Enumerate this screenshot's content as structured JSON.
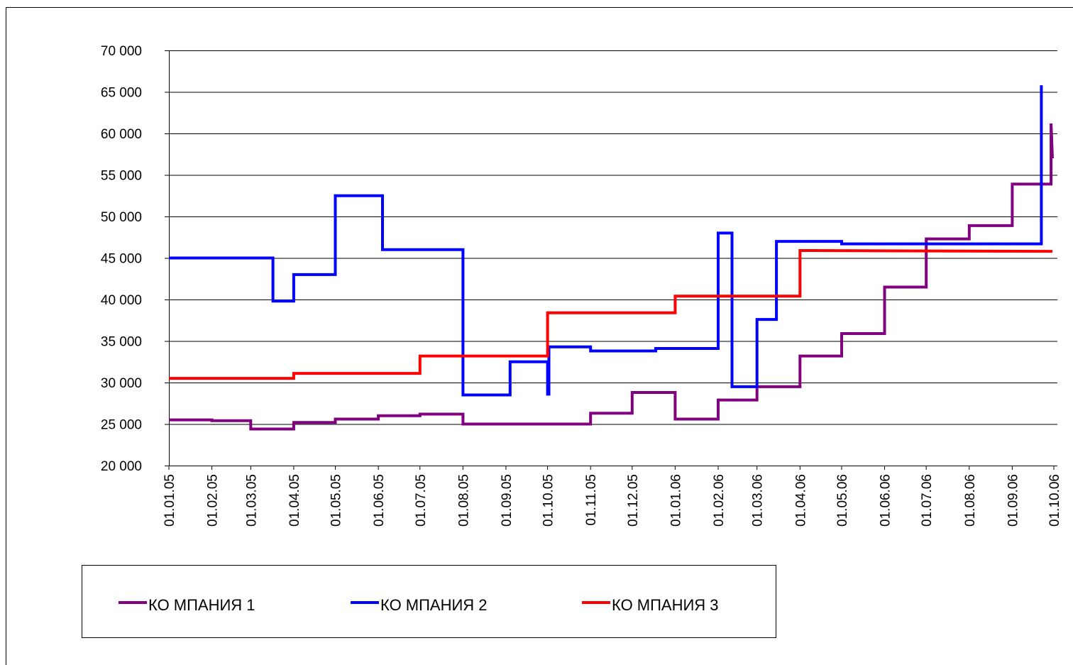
{
  "chart_data": {
    "type": "line",
    "xlim": [
      "01.01.05",
      "01.10.06"
    ],
    "xticks": [
      "01.01.05",
      "01.02.05",
      "01.03.05",
      "01.04.05",
      "01.05.05",
      "01.06.05",
      "01.07.05",
      "01.08.05",
      "01.09.05",
      "01.10.05",
      "01.11.05",
      "01.12.05",
      "01.01.06",
      "01.02.06",
      "01.03.06",
      "01.04.06",
      "01.05.06",
      "01.06.06",
      "01.07.06",
      "01.08.06",
      "01.09.06",
      "01.10.06"
    ],
    "ylim": [
      20000,
      70000
    ],
    "yticks": [
      {
        "value": 20000,
        "label": "20 000"
      },
      {
        "value": 25000,
        "label": "25 000"
      },
      {
        "value": 30000,
        "label": "30 000"
      },
      {
        "value": 35000,
        "label": "35 000"
      },
      {
        "value": 40000,
        "label": "40 000"
      },
      {
        "value": 45000,
        "label": "45 000"
      },
      {
        "value": 50000,
        "label": "50 000"
      },
      {
        "value": 55000,
        "label": "55 000"
      },
      {
        "value": 60000,
        "label": "60 000"
      },
      {
        "value": 65000,
        "label": "65 000"
      },
      {
        "value": 70000,
        "label": "70 000"
      }
    ],
    "grid": true,
    "series": [
      {
        "name": "КО МПАНИЯ 1",
        "color": "#800080",
        "x": [
          "01.01.05",
          "01.02.05",
          "01.02.05",
          "01.03.05",
          "01.03.05",
          "01.04.05",
          "01.04.05",
          "01.05.05",
          "01.05.05",
          "01.06.05",
          "01.06.05",
          "01.07.05",
          "01.07.05",
          "01.08.05",
          "01.08.05",
          "01.11.05",
          "01.11.05",
          "01.12.05",
          "01.12.05",
          "01.01.06",
          "01.01.06",
          "01.02.06",
          "01.02.06",
          "01.03.06",
          "01.03.06",
          "01.04.06",
          "01.04.06",
          "01.05.06",
          "01.05.06",
          "01.06.06",
          "01.06.06",
          "01.07.06",
          "01.07.06",
          "01.08.06",
          "01.08.06",
          "01.09.06",
          "01.09.06",
          "29.09.06",
          "29.09.06",
          "30.09.06"
        ],
        "values": [
          25500,
          25500,
          25400,
          25400,
          24400,
          24400,
          25200,
          25200,
          25600,
          25600,
          26000,
          26000,
          26200,
          26200,
          25000,
          25000,
          26300,
          26300,
          28800,
          28800,
          25600,
          25600,
          27900,
          27900,
          29500,
          29500,
          33200,
          33200,
          35900,
          35900,
          41500,
          41500,
          47300,
          47300,
          48900,
          48900,
          53900,
          53900,
          61200,
          57000
        ]
      },
      {
        "name": "КО МПАНИЯ 2",
        "color": "#0000ff",
        "x": [
          "01.01.05",
          "17.03.05",
          "17.03.05",
          "01.04.05",
          "01.04.05",
          "01.05.05",
          "01.05.05",
          "04.06.05",
          "04.06.05",
          "01.08.05",
          "01.08.05",
          "04.09.05",
          "04.09.05",
          "01.10.05",
          "01.10.05",
          "02.10.05",
          "02.10.05",
          "01.11.05",
          "01.11.05",
          "18.12.05",
          "18.12.05",
          "01.02.06",
          "01.02.06",
          "11.02.06",
          "11.02.06",
          "01.03.06",
          "01.03.06",
          "15.03.06",
          "15.03.06",
          "01.05.06",
          "01.05.06",
          "22.09.06",
          "22.09.06"
        ],
        "values": [
          45000,
          45000,
          39800,
          39800,
          43000,
          43000,
          52500,
          52500,
          46000,
          46000,
          28500,
          28500,
          32500,
          32500,
          28600,
          28600,
          34300,
          34300,
          33800,
          33800,
          34100,
          34100,
          48000,
          48000,
          29500,
          29500,
          37600,
          37600,
          47000,
          47000,
          46700,
          46700,
          65800
        ]
      },
      {
        "name": "КО МПАНИЯ 3",
        "color": "#ff0000",
        "x": [
          "01.01.05",
          "01.04.05",
          "01.04.05",
          "01.07.05",
          "01.07.05",
          "01.10.05",
          "01.10.05",
          "01.01.06",
          "01.01.06",
          "01.04.06",
          "01.04.06",
          "30.09.06"
        ],
        "values": [
          30500,
          30500,
          31100,
          31100,
          33200,
          33200,
          38400,
          38400,
          40400,
          40400,
          45900,
          45800
        ]
      }
    ],
    "legend": "bottom"
  }
}
